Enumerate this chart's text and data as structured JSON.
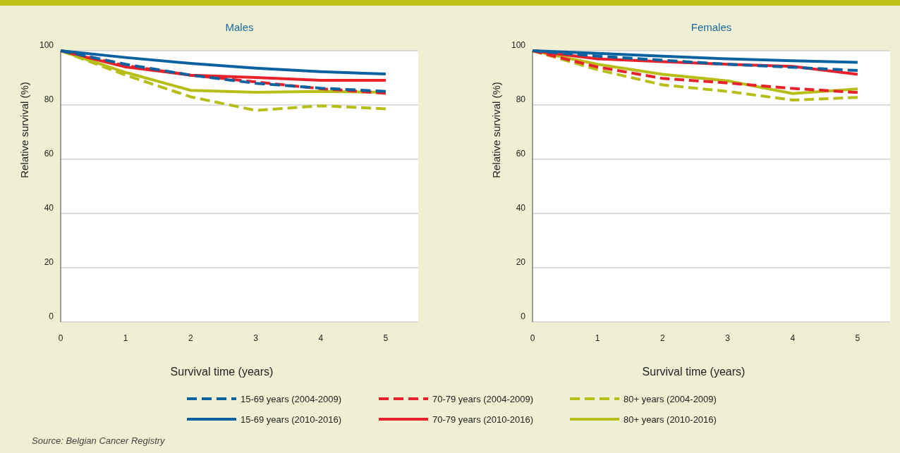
{
  "chart_data": [
    {
      "type": "line",
      "title": "Males",
      "xlabel": "Survival time (years)",
      "ylabel": "Relative survival (%)",
      "xlim": [
        0,
        5.5
      ],
      "xticks": [
        0,
        1,
        2,
        3,
        4,
        5
      ],
      "ylim": [
        0,
        100
      ],
      "yticks": [
        0,
        20,
        40,
        60,
        80,
        100
      ],
      "grid": "y",
      "marker": "none",
      "legend": "bottom",
      "annotations": [
        "Source: Belgian Cancer Registry"
      ],
      "x": [
        0,
        1,
        2,
        3,
        4,
        5
      ],
      "series": [
        {
          "name": "15-69 years (2004-2009)",
          "color": "#0b62a0",
          "line_style": "dashed",
          "values": [
            100,
            95,
            91,
            88,
            86.2,
            85
          ]
        },
        {
          "name": "70-79 years (2004-2009)",
          "color": "#e8212b",
          "line_style": "dashed",
          "values": [
            100,
            94.5,
            91,
            88.5,
            86,
            84.3
          ]
        },
        {
          "name": "80+ years (2004-2009)",
          "color": "#b8be18",
          "line_style": "dashed",
          "values": [
            100,
            91,
            83,
            78,
            79.7,
            78.6
          ]
        },
        {
          "name": "15-69 years (2010-2016)",
          "color": "#0b62a0",
          "line_style": "solid",
          "values": [
            100,
            97.5,
            95.3,
            93.6,
            92.3,
            91.4
          ]
        },
        {
          "name": "70-79 years (2010-2016)",
          "color": "#e8212b",
          "line_style": "solid",
          "values": [
            100,
            94,
            91,
            90.1,
            89.1,
            89.1
          ]
        },
        {
          "name": "80+ years (2010-2016)",
          "color": "#b8be18",
          "line_style": "solid",
          "values": [
            100,
            92,
            85.4,
            84.7,
            85,
            84.7
          ]
        }
      ]
    },
    {
      "type": "line",
      "title": "Females",
      "xlabel": "Survival time (years)",
      "ylabel": "Relative survival (%)",
      "xlim": [
        0,
        5.5
      ],
      "xticks": [
        0,
        1,
        2,
        3,
        4,
        5
      ],
      "ylim": [
        0,
        100
      ],
      "yticks": [
        0,
        20,
        40,
        60,
        80,
        100
      ],
      "grid": "y",
      "marker": "none",
      "x": [
        0,
        1,
        2,
        3,
        4,
        5
      ],
      "series": [
        {
          "color": "#0b62a0",
          "line_style": "dashed",
          "values": [
            100,
            98,
            96.5,
            95,
            93.9,
            92.7
          ]
        },
        {
          "color": "#e8212b",
          "line_style": "dashed",
          "values": [
            100,
            94,
            89.8,
            88.1,
            86.1,
            84.6
          ]
        },
        {
          "color": "#b8be18",
          "line_style": "dashed",
          "values": [
            100,
            93,
            87.4,
            85,
            81.8,
            82.8
          ]
        },
        {
          "color": "#0b62a0",
          "line_style": "solid",
          "values": [
            100,
            99,
            98,
            97,
            96.3,
            95.7
          ]
        },
        {
          "color": "#e8212b",
          "line_style": "solid",
          "values": [
            100,
            97,
            96,
            95,
            94.2,
            91.3
          ]
        },
        {
          "color": "#b8be18",
          "line_style": "solid",
          "values": [
            100,
            95,
            91.3,
            88.9,
            84.2,
            85.9
          ]
        }
      ]
    }
  ]
}
